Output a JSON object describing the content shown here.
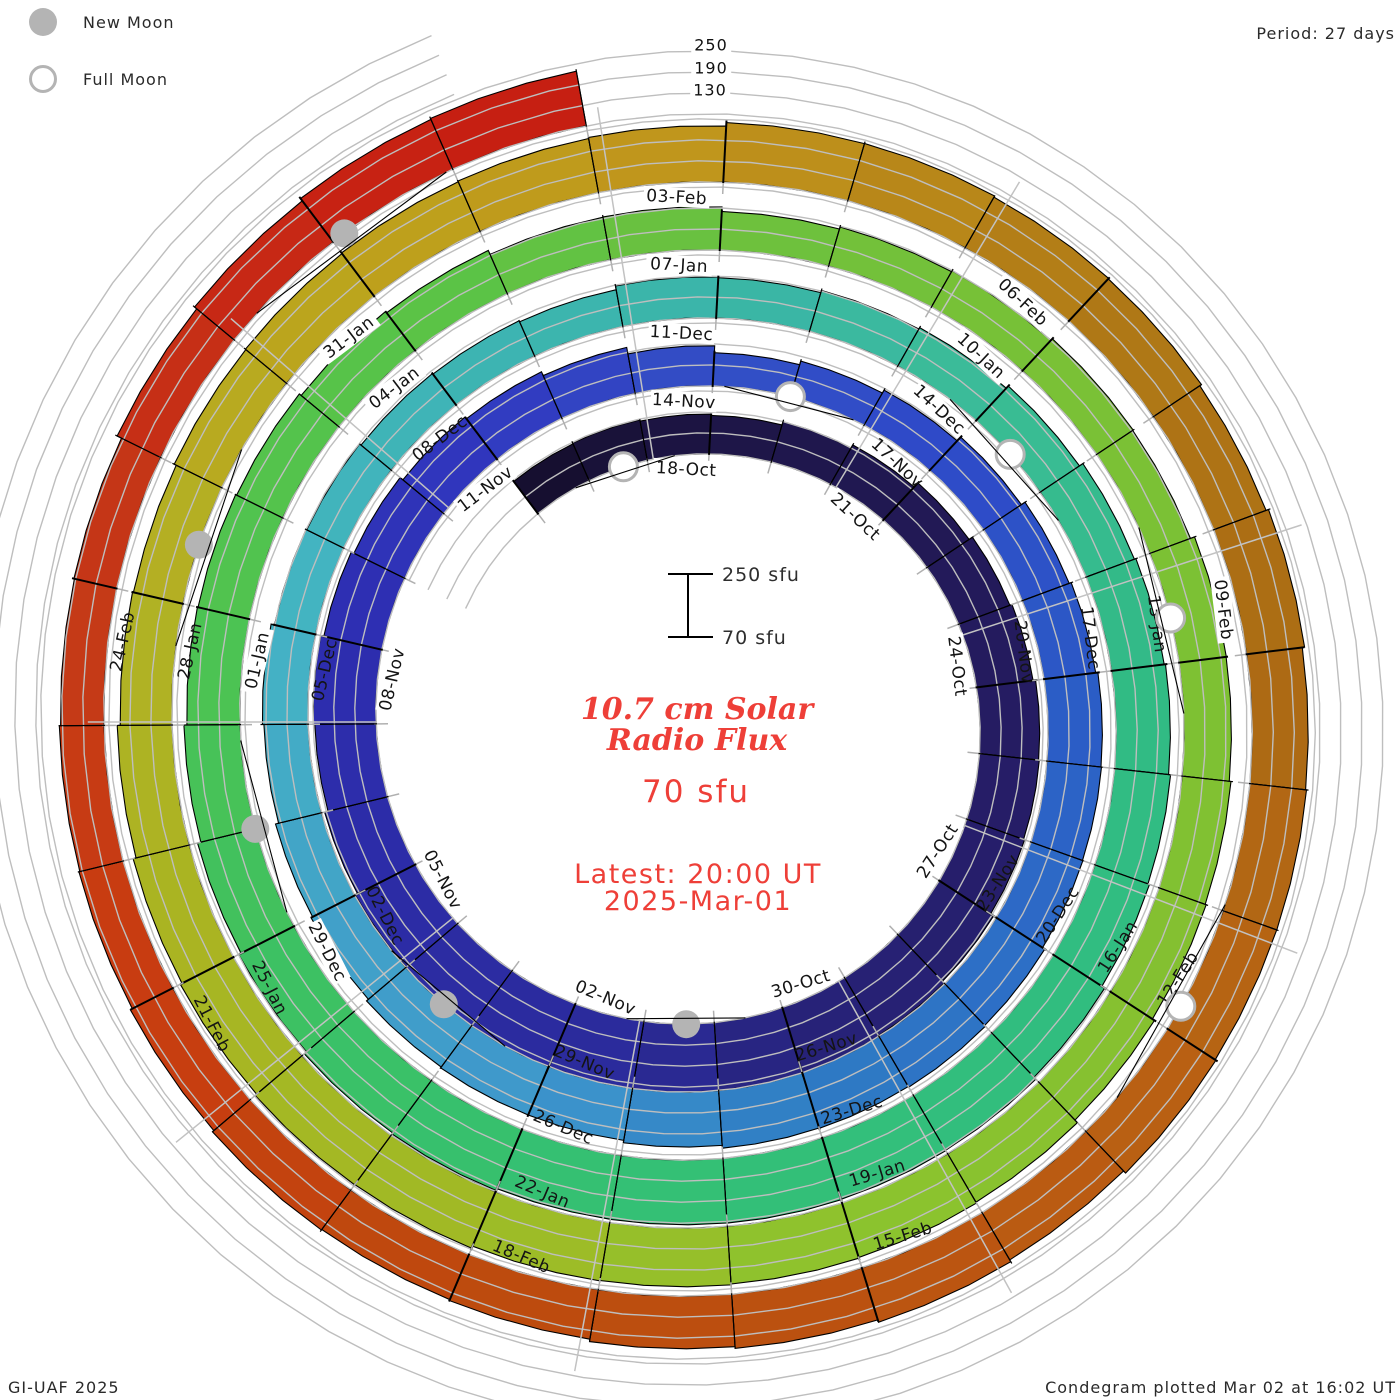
{
  "header": {
    "legend_new": "New Moon",
    "legend_full": "Full Moon",
    "period": "Period: 27 days"
  },
  "footer": {
    "left": "GI-UAF 2025",
    "right": "Condegram plotted Mar 02 at 16:02 UT"
  },
  "center": {
    "title_line1": "10.7 cm Solar",
    "title_line2": "Radio Flux",
    "current_value": "70 sfu",
    "latest_line1": "Latest: 20:00 UT",
    "latest_line2": "2025-Mar-01"
  },
  "scale_bar": {
    "top": "250 sfu",
    "bottom": "70 sfu"
  },
  "radial_axis_labels": [
    "250",
    "190",
    "130"
  ],
  "colors": {
    "title_red": "#ee3f38",
    "marker_gray": "#b4b4b4",
    "gridline_gray": "#bebebe",
    "tick_black": "#000000",
    "label_black": "#141414"
  },
  "chart_data": {
    "type": "spiral_bar",
    "title": "10.7 cm Solar Radio Flux",
    "units": "sfu",
    "period_days": 27,
    "start_date": "2024-10-15",
    "latest_time": "20:00 UT 2025-Mar-01",
    "baseline_sfu": 70,
    "gridlines_sfu": [
      70,
      130,
      190,
      250
    ],
    "radial_gridline_angles_deg": [
      31,
      72,
      111,
      151,
      190.5,
      231,
      270,
      311,
      351
    ],
    "flux_sample_step_days": 3,
    "flux_sfu": [
      185,
      180,
      215,
      240,
      255,
      270,
      280,
      255,
      240,
      215,
      165,
      200,
      225,
      235,
      235,
      220,
      205,
      190,
      180,
      185,
      205,
      225,
      245,
      255,
      260,
      240,
      220,
      205,
      180,
      195,
      205,
      220,
      235,
      245,
      235,
      215,
      225,
      240,
      235,
      230,
      235,
      225,
      210,
      200,
      195,
      225,
      240
    ],
    "date_label_start_day": 3,
    "date_label_step": 3,
    "date_labels": [
      "18-Oct",
      "21-Oct",
      "24-Oct",
      "27-Oct",
      "30-Oct",
      "02-Nov",
      "05-Nov",
      "08-Nov",
      "11-Nov",
      "14-Nov",
      "17-Nov",
      "20-Nov",
      "23-Nov",
      "26-Nov",
      "29-Nov",
      "02-Dec",
      "05-Dec",
      "08-Dec",
      "11-Dec",
      "14-Dec",
      "17-Dec",
      "20-Dec",
      "23-Dec",
      "26-Dec",
      "29-Dec",
      "01-Jan",
      "04-Jan",
      "07-Jan",
      "10-Jan",
      "13-Jan",
      "16-Jan",
      "19-Jan",
      "22-Jan",
      "25-Jan",
      "28-Jan",
      "31-Jan",
      "03-Feb",
      "06-Feb",
      "09-Feb",
      "12-Feb",
      "15-Feb",
      "18-Feb",
      "21-Feb",
      "24-Feb"
    ],
    "moons": {
      "new": {
        "label": "New Moon",
        "dates": [
          "01-Nov",
          "01-Dec",
          "30-Dec",
          "29-Jan",
          "28-Feb"
        ],
        "days": [
          16.4,
          46.4,
          76,
          105.5,
          135.1
        ]
      },
      "full": {
        "label": "Full Moon",
        "dates": [
          "17-Oct",
          "15-Nov",
          "15-Dec",
          "13-Jan",
          "12-Feb"
        ],
        "days": [
          1.6,
          31,
          60.5,
          89.6,
          119.8
        ]
      }
    },
    "color_stops": [
      [
        0,
        "#140e2c"
      ],
      [
        3,
        "#1d1546"
      ],
      [
        9,
        "#251b60"
      ],
      [
        15,
        "#27237a"
      ],
      [
        17,
        "#2b2b9a"
      ],
      [
        21,
        "#2c2ca6"
      ],
      [
        24,
        "#2d2db0"
      ],
      [
        27,
        "#3038c0"
      ],
      [
        30,
        "#3350c6"
      ],
      [
        33,
        "#2e49c8"
      ],
      [
        36,
        "#2b5ac6"
      ],
      [
        39,
        "#2d6cc6"
      ],
      [
        42,
        "#2e7bc4"
      ],
      [
        45,
        "#3e97cc"
      ],
      [
        48,
        "#42a2c8"
      ],
      [
        51,
        "#44b4c4"
      ],
      [
        54,
        "#3eb4b4"
      ],
      [
        57,
        "#3ab5a8"
      ],
      [
        60,
        "#3bbc96"
      ],
      [
        63,
        "#31ba85"
      ],
      [
        66,
        "#31bd80"
      ],
      [
        69,
        "#33bf7a"
      ],
      [
        72,
        "#35c070"
      ],
      [
        75,
        "#3fc160"
      ],
      [
        78,
        "#4fc350"
      ],
      [
        81,
        "#58c348"
      ],
      [
        84,
        "#6cc13e"
      ],
      [
        87,
        "#79c136"
      ],
      [
        90,
        "#7cc134"
      ],
      [
        93,
        "#85c030"
      ],
      [
        96,
        "#8cc32e"
      ],
      [
        99,
        "#a0ba26"
      ],
      [
        102,
        "#a8b522"
      ],
      [
        105,
        "#b2b124"
      ],
      [
        108,
        "#bda21c"
      ],
      [
        111,
        "#c0931c"
      ],
      [
        114,
        "#b07a16"
      ],
      [
        117,
        "#ab6b14"
      ],
      [
        120,
        "#b86313"
      ],
      [
        123,
        "#bb5210"
      ],
      [
        126,
        "#bd4a0e"
      ],
      [
        129,
        "#c93c10"
      ],
      [
        132,
        "#c43a18"
      ],
      [
        135,
        "#c82414"
      ],
      [
        138,
        "#c41a10"
      ]
    ]
  }
}
